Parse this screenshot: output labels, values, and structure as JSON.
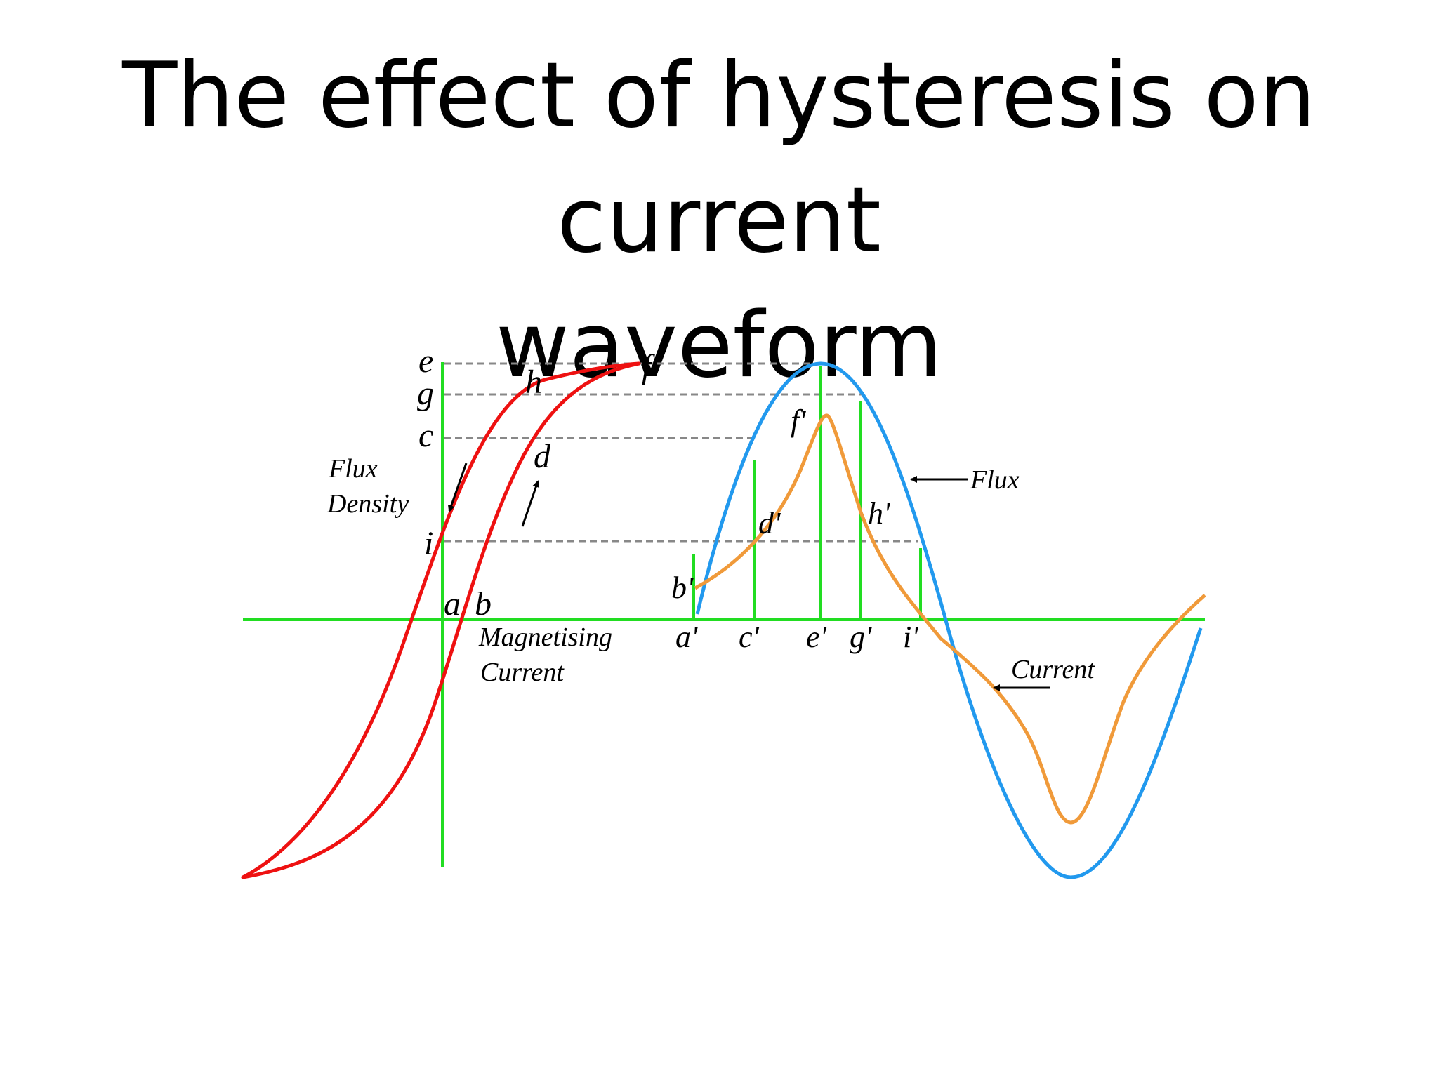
{
  "title": {
    "line1": "The effect of hysteresis on current",
    "line2": "waveform"
  },
  "colors": {
    "background": "#ffffff",
    "axes": "#22dd22",
    "hysteresis": "#ee1111",
    "flux": "#2299ee",
    "current": "#f09a3a",
    "dashed": "#888888"
  },
  "labels": {
    "e": "e",
    "g": "g",
    "c": "c",
    "i": "i",
    "h": "h",
    "f": "f",
    "d": "d",
    "a": "a",
    "b": "b",
    "flux_density_1": "Flux",
    "flux_density_2": "Density",
    "magnetising_1": "Magnetising",
    "magnetising_2": "Current",
    "a1": "a'",
    "c1": "c'",
    "e1": "e'",
    "g1": "g'",
    "i1": "i'",
    "b1": "b'",
    "d1": "d'",
    "f1": "f'",
    "h1": "h'",
    "flux": "Flux",
    "current": "Current"
  }
}
